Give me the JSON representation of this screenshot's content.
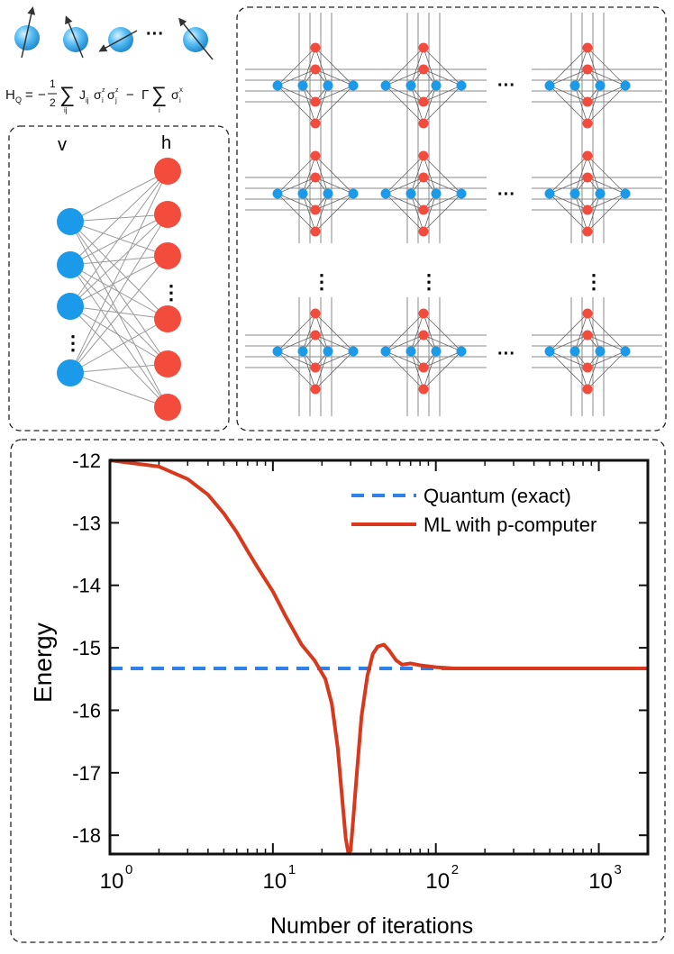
{
  "hamiltonian": {
    "lhs": "H",
    "lhs_sub": "Q",
    "equals": "=",
    "minus": "−",
    "frac_num": "1",
    "frac_den": "2",
    "sum_symbol": "∑",
    "sum1_index": "ij",
    "coupling": "J",
    "coupling_sub": "ij",
    "sigma": "σ",
    "i_sub": "i",
    "j_sub": "j",
    "z_sup": "z",
    "gamma": "Γ",
    "sum2_index": "i",
    "x_sup": "x"
  },
  "spin_row": {
    "ellipsis": "···"
  },
  "rbm": {
    "visible_label": "v",
    "hidden_label": "h",
    "ellipsis": "⋮"
  },
  "grid": {
    "h_ellipsis": "···",
    "v_ellipsis": "⋮"
  },
  "chart_data": {
    "type": "line",
    "xscale": "log",
    "xlim": [
      1,
      2000
    ],
    "ylim": [
      -18.3,
      -12
    ],
    "xlabel": "Number of iterations",
    "ylabel": "Energy",
    "xticks": [
      1,
      10,
      100,
      1000
    ],
    "xtick_labels": [
      {
        "base": "10",
        "exp": "0"
      },
      {
        "base": "10",
        "exp": "1"
      },
      {
        "base": "10",
        "exp": "2"
      },
      {
        "base": "10",
        "exp": "3"
      }
    ],
    "yticks": [
      -12,
      -13,
      -14,
      -15,
      -16,
      -17,
      -18
    ],
    "ytick_labels": [
      "-12",
      "-13",
      "-14",
      "-15",
      "-16",
      "-17",
      "-18"
    ],
    "legend_position": "top-right",
    "series": [
      {
        "name": "Quantum (exact)",
        "style": "dashed",
        "color": "#2f80ed",
        "x": [
          1,
          2000
        ],
        "y": [
          -15.33,
          -15.33
        ]
      },
      {
        "name": "ML with p-computer",
        "style": "solid",
        "color": "#d8381b",
        "x": [
          1,
          2,
          3,
          4,
          5,
          6,
          7,
          8,
          10,
          12,
          15,
          18,
          21,
          23,
          25,
          27,
          28,
          29,
          30,
          31,
          33,
          35,
          38,
          41,
          44,
          48,
          52,
          57,
          62,
          70,
          80,
          100,
          130,
          200,
          500,
          1000,
          2000
        ],
        "y": [
          -12.0,
          -12.1,
          -12.3,
          -12.55,
          -12.85,
          -13.15,
          -13.45,
          -13.7,
          -14.1,
          -14.5,
          -14.95,
          -15.2,
          -15.5,
          -15.9,
          -16.6,
          -17.6,
          -18.05,
          -18.28,
          -18.25,
          -17.8,
          -16.9,
          -16.1,
          -15.45,
          -15.1,
          -14.98,
          -14.95,
          -15.05,
          -15.2,
          -15.27,
          -15.25,
          -15.28,
          -15.31,
          -15.33,
          -15.33,
          -15.33,
          -15.33,
          -15.33
        ]
      }
    ]
  },
  "colors": {
    "spin_blue": "#1a9ae8",
    "spin_red": "#f44c3c",
    "line_red": "#d8381b",
    "dash_blue": "#2f80ed",
    "grid_gray": "#8a8a8a",
    "frame": "#333333"
  }
}
